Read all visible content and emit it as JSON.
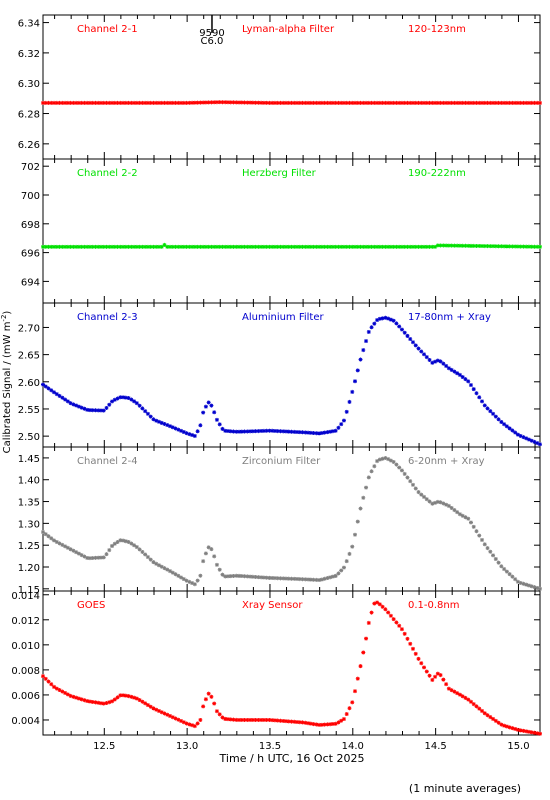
{
  "figure": {
    "ylabel": "Calibrated Signal / (mW m",
    "ylabel_sup": "-2",
    "ylabel_close": ")",
    "xlabel": "Time / h UTC, 16 Oct 2025",
    "footnote": "(1 minute averages)",
    "flare_label_top": "9590",
    "flare_label_bottom": "C6.0"
  },
  "chart_data": [
    {
      "type": "scatter",
      "channel": "Channel 2-1",
      "filter": "Lyman-alpha Filter",
      "band": "120-123nm",
      "color": "#ff0000",
      "ylim": [
        6.25,
        6.345
      ],
      "yticks": [
        6.26,
        6.28,
        6.3,
        6.32,
        6.34
      ],
      "ytick_labels": [
        "6.26",
        "6.28",
        "6.30",
        "6.32",
        "6.34"
      ],
      "xlim": [
        12.13,
        15.13
      ],
      "x": [
        12.13,
        12.5,
        13.0,
        13.2,
        13.5,
        14.0,
        14.5,
        15.13
      ],
      "y": [
        6.287,
        6.287,
        6.287,
        6.2875,
        6.287,
        6.287,
        6.287,
        6.287
      ]
    },
    {
      "type": "scatter",
      "channel": "Channel 2-2",
      "filter": "Herzberg Filter",
      "band": "190-222nm",
      "color": "#00e000",
      "ylim": [
        692.5,
        702.5
      ],
      "yticks": [
        694,
        696,
        698,
        700,
        702
      ],
      "ytick_labels": [
        "694",
        "696",
        "698",
        "700",
        "702"
      ],
      "xlim": [
        12.13,
        15.13
      ],
      "x": [
        12.13,
        12.85,
        12.86,
        12.87,
        13.5,
        14.5,
        14.51,
        15.13
      ],
      "y": [
        696.4,
        696.4,
        696.6,
        696.4,
        696.4,
        696.4,
        696.5,
        696.4
      ]
    },
    {
      "type": "scatter",
      "channel": "Channel 2-3",
      "filter": "Aluminium Filter",
      "band": "17-80nm + Xray",
      "color": "#0000cd",
      "ylim": [
        2.48,
        2.745
      ],
      "yticks": [
        2.5,
        2.55,
        2.6,
        2.65,
        2.7
      ],
      "ytick_labels": [
        "2.50",
        "2.55",
        "2.60",
        "2.65",
        "2.70"
      ],
      "xlim": [
        12.13,
        15.13
      ],
      "x": [
        12.13,
        12.2,
        12.3,
        12.4,
        12.5,
        12.55,
        12.6,
        12.65,
        12.7,
        12.8,
        12.9,
        13.0,
        13.05,
        13.08,
        13.1,
        13.13,
        13.15,
        13.18,
        13.22,
        13.3,
        13.5,
        13.7,
        13.8,
        13.9,
        13.95,
        14.0,
        14.05,
        14.1,
        14.15,
        14.2,
        14.25,
        14.3,
        14.4,
        14.48,
        14.52,
        14.58,
        14.65,
        14.7,
        14.8,
        14.9,
        15.0,
        15.13
      ],
      "y": [
        2.595,
        2.58,
        2.56,
        2.548,
        2.547,
        2.565,
        2.572,
        2.57,
        2.56,
        2.53,
        2.518,
        2.505,
        2.5,
        2.52,
        2.548,
        2.562,
        2.555,
        2.53,
        2.51,
        2.508,
        2.51,
        2.507,
        2.505,
        2.51,
        2.53,
        2.585,
        2.645,
        2.695,
        2.715,
        2.718,
        2.712,
        2.695,
        2.66,
        2.635,
        2.64,
        2.625,
        2.612,
        2.6,
        2.555,
        2.525,
        2.502,
        2.485
      ]
    },
    {
      "type": "scatter",
      "channel": "Channel 2-4",
      "filter": "Zirconium Filter",
      "band": "6-20nm + Xray",
      "color": "#808080",
      "ylim": [
        1.145,
        1.475
      ],
      "yticks": [
        1.15,
        1.2,
        1.25,
        1.3,
        1.35,
        1.4,
        1.45
      ],
      "ytick_labels": [
        "1.15",
        "1.20",
        "1.25",
        "1.30",
        "1.35",
        "1.40",
        "1.45"
      ],
      "xlim": [
        12.13,
        15.13
      ],
      "x": [
        12.13,
        12.2,
        12.3,
        12.4,
        12.5,
        12.55,
        12.6,
        12.65,
        12.7,
        12.8,
        12.9,
        13.0,
        13.05,
        13.08,
        13.1,
        13.13,
        13.15,
        13.18,
        13.22,
        13.3,
        13.5,
        13.7,
        13.8,
        13.9,
        13.95,
        14.0,
        14.05,
        14.1,
        14.15,
        14.2,
        14.25,
        14.3,
        14.4,
        14.48,
        14.52,
        14.58,
        14.65,
        14.7,
        14.8,
        14.9,
        15.0,
        15.13
      ],
      "y": [
        1.28,
        1.26,
        1.24,
        1.22,
        1.222,
        1.25,
        1.262,
        1.257,
        1.245,
        1.21,
        1.19,
        1.168,
        1.16,
        1.18,
        1.22,
        1.245,
        1.24,
        1.205,
        1.178,
        1.18,
        1.175,
        1.172,
        1.17,
        1.18,
        1.2,
        1.25,
        1.34,
        1.41,
        1.445,
        1.45,
        1.44,
        1.42,
        1.37,
        1.345,
        1.35,
        1.34,
        1.32,
        1.31,
        1.25,
        1.2,
        1.165,
        1.15
      ]
    },
    {
      "type": "scatter",
      "channel": "GOES",
      "filter": "Xray Sensor",
      "band": "0.1-0.8nm",
      "color": "#ff0000",
      "ylim": [
        0.0028,
        0.0143
      ],
      "yticks": [
        0.004,
        0.006,
        0.008,
        0.01,
        0.012,
        0.014
      ],
      "ytick_labels": [
        "0.004",
        "0.006",
        "0.008",
        "0.010",
        "0.012",
        "0.014"
      ],
      "xlim": [
        12.13,
        15.13
      ],
      "x": [
        12.13,
        12.2,
        12.3,
        12.4,
        12.5,
        12.55,
        12.6,
        12.65,
        12.7,
        12.8,
        12.9,
        13.0,
        13.05,
        13.08,
        13.1,
        13.13,
        13.15,
        13.18,
        13.22,
        13.3,
        13.5,
        13.7,
        13.8,
        13.9,
        13.95,
        14.0,
        14.05,
        14.08,
        14.1,
        14.13,
        14.15,
        14.2,
        14.25,
        14.3,
        14.4,
        14.48,
        14.52,
        14.58,
        14.65,
        14.7,
        14.8,
        14.9,
        15.0,
        15.13
      ],
      "y": [
        0.0075,
        0.0066,
        0.0059,
        0.0055,
        0.0053,
        0.0055,
        0.006,
        0.0059,
        0.0057,
        0.0049,
        0.0043,
        0.0037,
        0.0035,
        0.004,
        0.0053,
        0.0061,
        0.0058,
        0.0047,
        0.0041,
        0.004,
        0.004,
        0.0038,
        0.0036,
        0.0037,
        0.0041,
        0.0055,
        0.0085,
        0.0105,
        0.012,
        0.0133,
        0.0134,
        0.0128,
        0.012,
        0.0112,
        0.0088,
        0.0072,
        0.0078,
        0.0065,
        0.006,
        0.0056,
        0.0045,
        0.0036,
        0.0032,
        0.0029
      ]
    }
  ],
  "xaxis": {
    "xlim": [
      12.13,
      15.13
    ],
    "ticks": [
      12.5,
      13.0,
      13.5,
      14.0,
      14.5,
      15.0
    ],
    "tick_labels": [
      "12.5",
      "13.0",
      "13.5",
      "14.0",
      "14.5",
      "15.0"
    ]
  },
  "flare_marker_x": 13.15
}
